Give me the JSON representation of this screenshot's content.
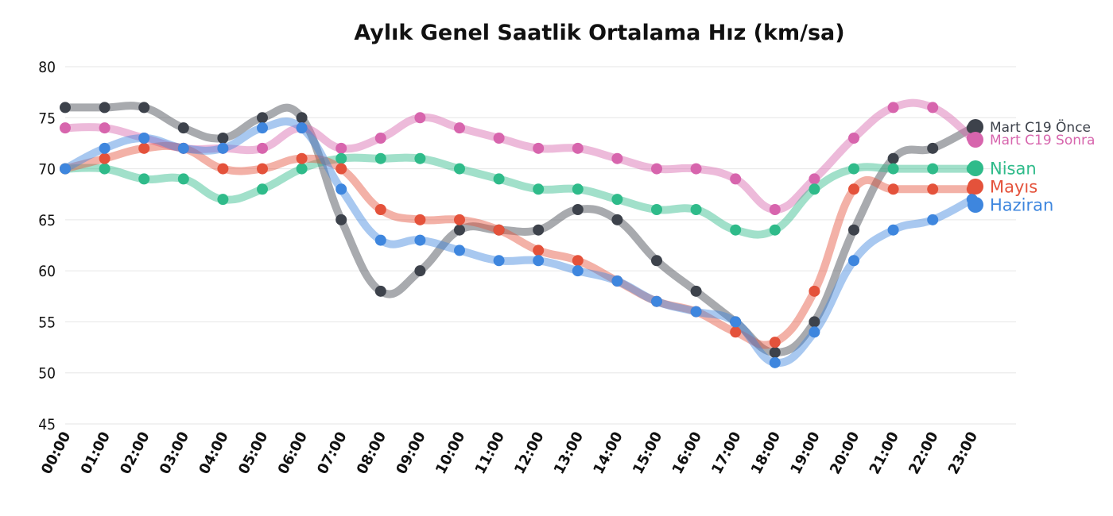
{
  "chart_data": {
    "type": "line",
    "title": "Aylık Genel Saatlik Ortalama Hız (km/sa)",
    "xlabel": "",
    "ylabel": "",
    "ylim": [
      45,
      80
    ],
    "yticks": [
      45,
      50,
      55,
      60,
      65,
      70,
      75,
      80
    ],
    "grid": true,
    "smooth": true,
    "legend_position": "right, at line ends",
    "categories": [
      "00:00",
      "01:00",
      "02:00",
      "03:00",
      "04:00",
      "05:00",
      "06:00",
      "07:00",
      "08:00",
      "09:00",
      "10:00",
      "11:00",
      "12:00",
      "13:00",
      "14:00",
      "15:00",
      "16:00",
      "17:00",
      "18:00",
      "19:00",
      "20:00",
      "21:00",
      "22:00",
      "23:00"
    ],
    "series": [
      {
        "name": "Mart C19 Önce",
        "color": "#3d424b",
        "values": [
          76,
          76,
          76,
          74,
          73,
          75,
          75,
          65,
          58,
          60,
          64,
          64,
          64,
          66,
          65,
          61,
          58,
          55,
          52,
          55,
          64,
          71,
          72,
          74
        ]
      },
      {
        "name": "Mart C19 Sonra",
        "color": "#d765ad",
        "values": [
          74,
          74,
          73,
          72,
          72,
          72,
          74,
          72,
          73,
          75,
          74,
          73,
          72,
          72,
          71,
          70,
          70,
          69,
          66,
          69,
          73,
          76,
          76,
          73
        ]
      },
      {
        "name": "Nisan",
        "color": "#2fbb8a",
        "values": [
          70,
          70,
          69,
          69,
          67,
          68,
          70,
          71,
          71,
          71,
          70,
          69,
          68,
          68,
          67,
          66,
          66,
          64,
          64,
          68,
          70,
          70,
          70,
          70
        ]
      },
      {
        "name": "Mayıs",
        "color": "#e4523b",
        "values": [
          70,
          71,
          72,
          72,
          70,
          70,
          71,
          70,
          66,
          65,
          65,
          64,
          62,
          61,
          59,
          57,
          56,
          54,
          53,
          58,
          68,
          68,
          68,
          68
        ]
      },
      {
        "name": "Haziran",
        "color": "#3e86de",
        "values": [
          70,
          72,
          73,
          72,
          72,
          74,
          74,
          68,
          63,
          63,
          62,
          61,
          61,
          60,
          59,
          57,
          56,
          55,
          51,
          54,
          61,
          64,
          65,
          67
        ]
      }
    ]
  }
}
